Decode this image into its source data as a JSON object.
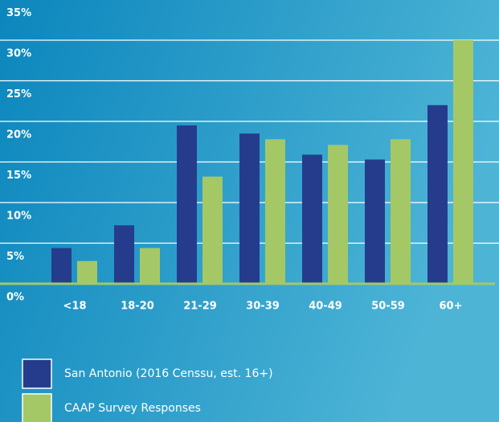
{
  "chart_data": {
    "type": "bar",
    "categories": [
      "<18",
      "18-20",
      "21-29",
      "30-39",
      "40-49",
      "50-59",
      "60+"
    ],
    "series": [
      {
        "name": "San Antonio (2016 Censsu, est. 16+)",
        "color": "#253c8c",
        "values": [
          4.4,
          7.2,
          19.5,
          18.5,
          15.9,
          15.3,
          22
        ]
      },
      {
        "name": "CAAP Survey Responses",
        "color": "#a4c866",
        "values": [
          2.8,
          4.4,
          13.2,
          17.8,
          17.1,
          17.8,
          30
        ]
      }
    ],
    "ylim": [
      0,
      35
    ],
    "yticks": [
      {
        "value": 0,
        "label": "0%"
      },
      {
        "value": 5,
        "label": "5%"
      },
      {
        "value": 10,
        "label": "10%"
      },
      {
        "value": 15,
        "label": "15%"
      },
      {
        "value": 20,
        "label": "20%"
      },
      {
        "value": 25,
        "label": "25%"
      },
      {
        "value": 30,
        "label": "30%"
      },
      {
        "value": 35,
        "label": "35%"
      }
    ],
    "grid": true
  }
}
